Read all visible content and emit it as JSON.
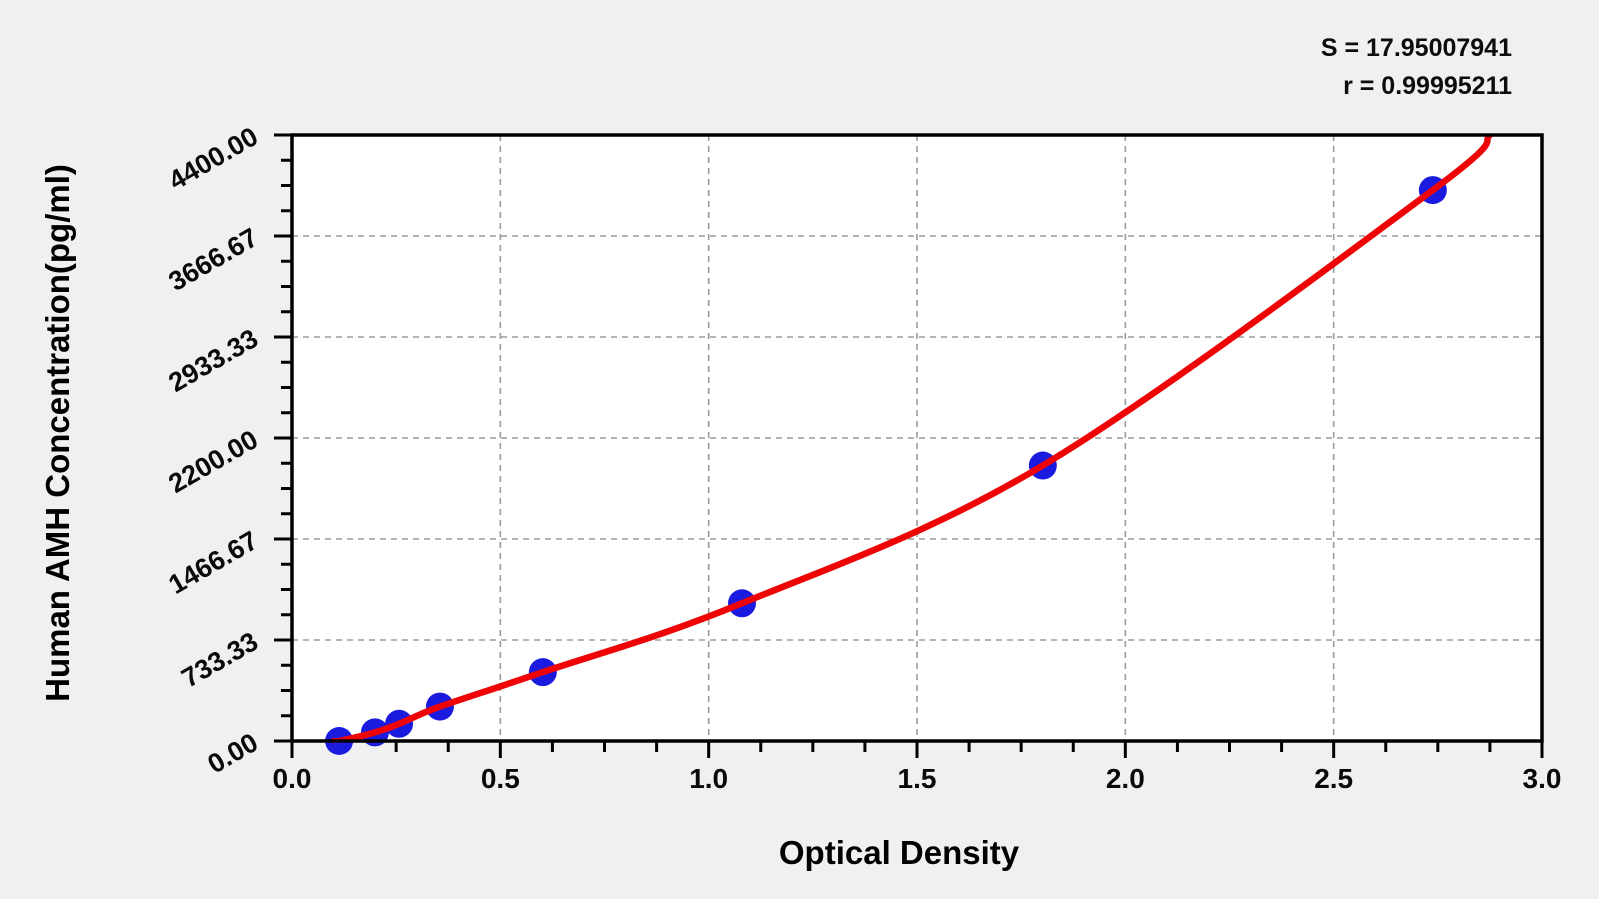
{
  "annotations": {
    "s_line": "S = 17.95007941",
    "r_line": "r = 0.99995211"
  },
  "chart_data": {
    "type": "scatter",
    "title": "",
    "xlabel": "Optical Density",
    "ylabel": "Human AMH Concentration(pg/ml)",
    "xlim": [
      0.0,
      3.0
    ],
    "ylim": [
      0.0,
      4400.0
    ],
    "x_tick_values": [
      0.0,
      0.5,
      1.0,
      1.5,
      2.0,
      2.5,
      3.0
    ],
    "x_tick_labels": [
      "0.0",
      "0.5",
      "1.0",
      "1.5",
      "2.0",
      "2.5",
      "3.0"
    ],
    "x_minor_step": 0.125,
    "y_tick_values": [
      0,
      733.33,
      1466.67,
      2200.0,
      2933.33,
      3666.67,
      4400.0
    ],
    "y_tick_labels": [
      "0.00",
      "733.33",
      "1466.67",
      "2200.00",
      "2933.33",
      "3666.67",
      "4400.00"
    ],
    "y_minor_step": 183.3333,
    "grid": {
      "show": true,
      "style": "dashed",
      "color": "#9b9b9b",
      "at": "major-ticks"
    },
    "legend": "none",
    "series": [
      {
        "name": "standard-points",
        "type": "scatter",
        "marker": "circle",
        "color": "#1b1be0",
        "points": [
          [
            0.113,
            0
          ],
          [
            0.199,
            62.5
          ],
          [
            0.257,
            125
          ],
          [
            0.355,
            250
          ],
          [
            0.602,
            500
          ],
          [
            1.08,
            1000
          ],
          [
            1.802,
            2000
          ],
          [
            2.738,
            4000
          ]
        ]
      },
      {
        "name": "fitted-curve",
        "type": "line",
        "color": "#ee0404",
        "curve_start": [
          0.1,
          0
        ],
        "curve_end": [
          2.875,
          4400
        ]
      }
    ],
    "fit_stats": {
      "S": 17.95007941,
      "r": 0.99995211
    }
  },
  "colors": {
    "background": "#f0f0f0",
    "plot_background": "#ffffff",
    "axis": "#000000",
    "grid": "#9b9b9b",
    "marker": "#1b1be0",
    "curve": "#ee0404",
    "text": "#0a0a0a"
  }
}
